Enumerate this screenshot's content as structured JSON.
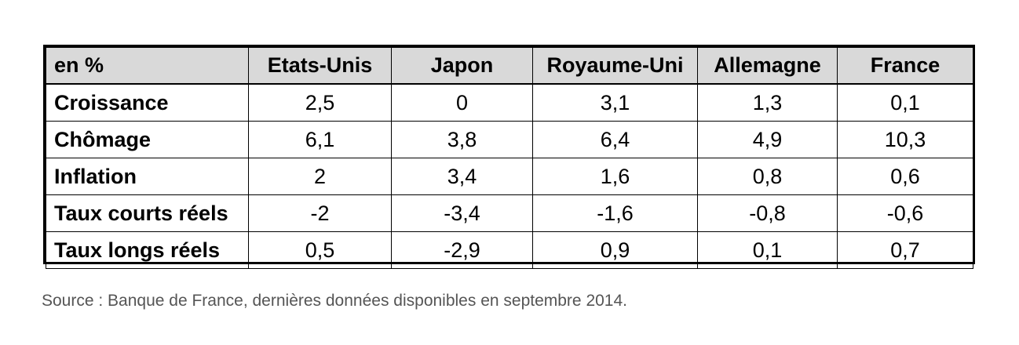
{
  "table": {
    "corner_label": "en %",
    "columns": [
      "Etats-Unis",
      "Japon",
      "Royaume-Uni",
      "Allemagne",
      "France"
    ],
    "rows": [
      {
        "label": "Croissance",
        "values": [
          "2,5",
          "0",
          "3,1",
          "1,3",
          "0,1"
        ]
      },
      {
        "label": "Chômage",
        "values": [
          "6,1",
          "3,8",
          "6,4",
          "4,9",
          "10,3"
        ]
      },
      {
        "label": "Inflation",
        "values": [
          "2",
          "3,4",
          "1,6",
          "0,8",
          "0,6"
        ]
      },
      {
        "label": "Taux courts réels",
        "values": [
          "-2",
          "-3,4",
          "-1,6",
          "-0,8",
          "-0,6"
        ]
      },
      {
        "label": "Taux longs réels",
        "values": [
          "0,5",
          "-2,9",
          "0,9",
          "0,1",
          "0,7"
        ]
      }
    ]
  },
  "source": "Source : Banque de France, dernières données disponibles en septembre 2014.",
  "colors": {
    "header_background": "#d9d9d9",
    "border": "#000000",
    "source_text": "#555555"
  }
}
